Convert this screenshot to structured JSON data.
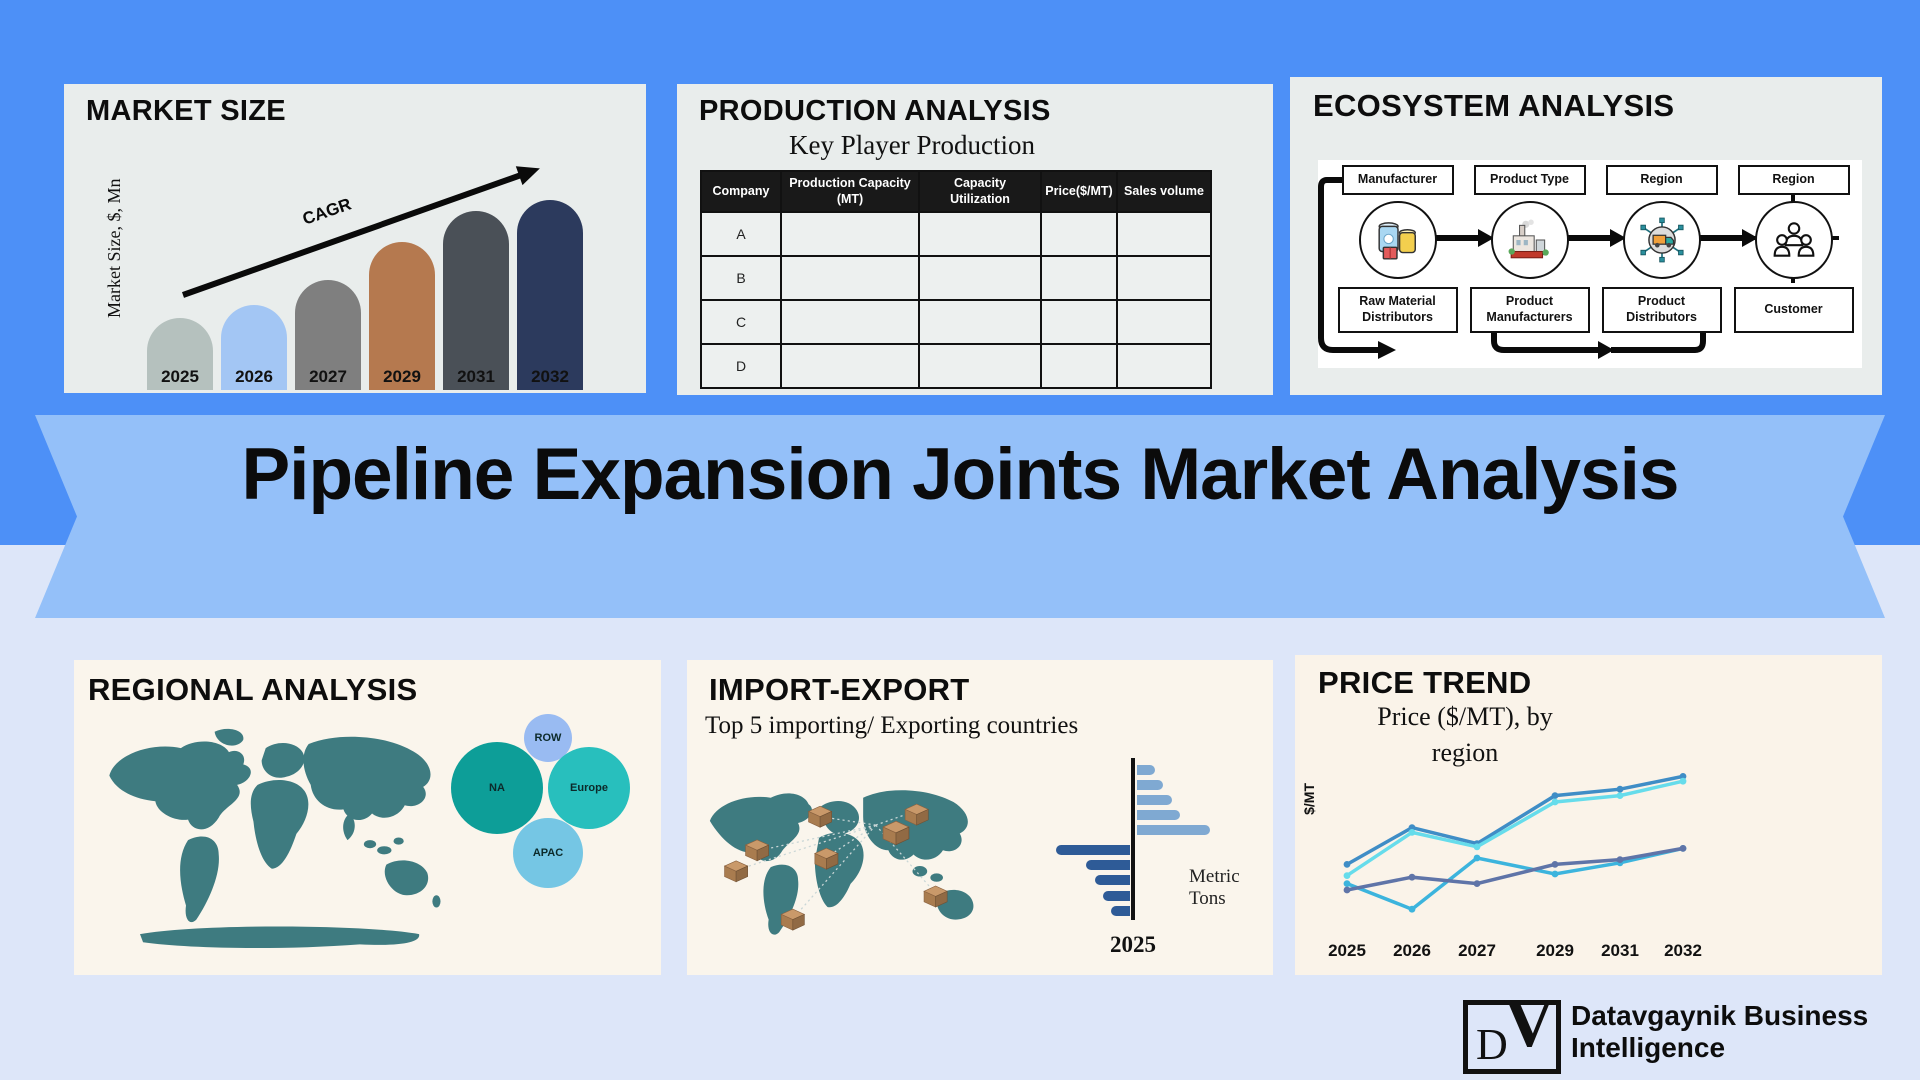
{
  "title_banner": "Pipeline Expansion Joints Market Analysis",
  "colors": {
    "top_background": "#4d90f7",
    "ribbon": "#94c0f9",
    "bottom_background": "#dde6f9",
    "top_panel_background": "#e9edec",
    "bottom_panel_background": "#faf5ec",
    "map_teal": "#3e7b80"
  },
  "panels": {
    "market_size": {
      "title": "MARKET SIZE",
      "y_axis_label": "Market Size, $, Mn",
      "cagr_label": "CAGR"
    },
    "production": {
      "title": "PRODUCTION ANALYSIS",
      "subtitle": "Key Player Production",
      "table": {
        "headers": [
          "Company",
          "Production Capacity (MT)",
          "Capacity Utilization",
          "Price($/MT)",
          "Sales volume"
        ],
        "row_labels": [
          "A",
          "B",
          "C",
          "D"
        ]
      }
    },
    "ecosystem": {
      "title": "ECOSYSTEM ANALYSIS",
      "top_boxes": [
        "Manufacturer",
        "Product Type",
        "Region",
        "Region"
      ],
      "bottom_boxes": [
        "Raw Material Distributors",
        "Product Manufacturers",
        "Product Distributors",
        "Customer"
      ],
      "icons": [
        "raw-material-jars-icon",
        "factory-icon",
        "distribution-network-icon",
        "customer-people-icon"
      ]
    },
    "regional": {
      "title": "REGIONAL ANALYSIS",
      "bubbles": [
        {
          "label": "NA",
          "color": "#0d9e98"
        },
        {
          "label": "Europe",
          "color": "#28bfbd"
        },
        {
          "label": "APAC",
          "color": "#75c6e4"
        },
        {
          "label": "ROW",
          "color": "#99bbf2"
        }
      ]
    },
    "import_export": {
      "title": "IMPORT-EXPORT",
      "subtitle": "Top 5 importing/ Exporting countries",
      "unit_label": "Metric Tons",
      "axis_year": "2025"
    },
    "price_trend": {
      "title": "PRICE TREND",
      "subtitle_line1": "Price ($/MT), by",
      "subtitle_line2": "region",
      "y_axis_label": "$/MT"
    }
  },
  "logo": {
    "letter_d": "D",
    "letter_v": "V",
    "line1": "Datavgaynik Business",
    "line2": "Intelligence"
  },
  "chart_data": [
    {
      "type": "bar",
      "title": "MARKET SIZE",
      "ylabel": "Market Size, $, Mn",
      "annotation": "CAGR",
      "categories": [
        "2025",
        "2026",
        "2027",
        "2029",
        "2031",
        "2032"
      ],
      "values": [
        38,
        45,
        58,
        78,
        94,
        100
      ],
      "value_note": "relative heights, no numeric axis shown",
      "bar_colors": [
        "#b5c1be",
        "#a3c6f4",
        "#7f7f7f",
        "#b5794f",
        "#4a5057",
        "#2c3a5d"
      ],
      "ylim": [
        0,
        100
      ]
    },
    {
      "type": "bar",
      "subtype": "tornado",
      "title": "Top 5 importing/ Exporting countries",
      "xlabel": "Metric Tons",
      "year": "2025",
      "series": [
        {
          "name": "left-dark-blue-bars",
          "color": "#2e5b97",
          "values": [
            100,
            60,
            47,
            36,
            26
          ]
        },
        {
          "name": "right-light-blue-bars",
          "color": "#7fa9d2",
          "values": [
            25,
            36,
            48,
            59,
            100
          ]
        }
      ],
      "value_note": "relative lengths, no numeric axis shown"
    },
    {
      "type": "line",
      "title": "Price ($/MT), by region",
      "ylabel": "$/MT",
      "categories": [
        "2025",
        "2026",
        "2027",
        "2029",
        "2031",
        "2032"
      ],
      "series": [
        {
          "name": "region-line-1",
          "color": "#3f8dc6",
          "values": [
            41,
            64,
            54,
            84,
            88,
            96
          ]
        },
        {
          "name": "region-line-2",
          "color": "#66dceb",
          "values": [
            34,
            61,
            52,
            80,
            84,
            93
          ]
        },
        {
          "name": "region-line-3",
          "color": "#3cb4dd",
          "values": [
            29,
            13,
            45,
            35,
            42,
            51
          ]
        },
        {
          "name": "region-line-4",
          "color": "#5f74a8",
          "values": [
            25,
            33,
            29,
            41,
            44,
            51
          ]
        }
      ],
      "legend": "none",
      "value_note": "relative price index, no numeric axis shown"
    },
    {
      "type": "bubble",
      "title": "REGIONAL ANALYSIS",
      "bubbles": [
        {
          "label": "NA",
          "size": 100,
          "color": "#0d9e98"
        },
        {
          "label": "Europe",
          "size": 80,
          "color": "#28bfbd"
        },
        {
          "label": "APAC",
          "size": 58,
          "color": "#75c6e4"
        },
        {
          "label": "ROW",
          "size": 27,
          "color": "#99bbf2"
        }
      ]
    }
  ]
}
